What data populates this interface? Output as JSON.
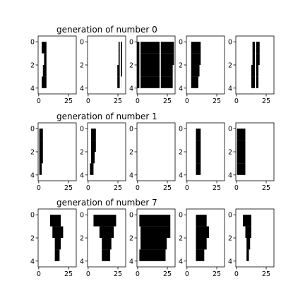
{
  "chart_data": {
    "type": "heatmap",
    "colormap": "binary",
    "rows": [
      {
        "title": "generation of number 0",
        "panels": [
          {
            "filled": [
              [
                3,
                7
              ],
              [
                5,
                7
              ],
              [
                4,
                7
              ],
              [
                3,
                7
              ]
            ],
            "white": []
          },
          {
            "filled": [
              [
                26,
                29
              ],
              [
                26,
                29
              ],
              [
                25,
                29
              ],
              [
                25,
                28
              ]
            ],
            "white": [
              [
                27,
                28
              ]
            ]
          },
          {
            "filled": [
              [
                0,
                31
              ],
              [
                0,
                31
              ],
              [
                0,
                30
              ],
              [
                0,
                30
              ]
            ],
            "white": [
              [
                2,
                3
              ],
              [
                19,
                20
              ]
            ]
          },
          {
            "filled": [
              [
                4,
                12
              ],
              [
                4,
                12
              ],
              [
                4,
                11
              ],
              [
                4,
                10
              ]
            ],
            "white": []
          },
          {
            "filled": [
              [
                14,
                20
              ],
              [
                14,
                20
              ],
              [
                13,
                19
              ],
              [
                13,
                19
              ]
            ],
            "white": [
              [
                16,
                17
              ]
            ]
          }
        ]
      },
      {
        "title": "generation of number 1",
        "panels": [
          {
            "filled": [
              [
                1,
                4
              ],
              [
                1,
                4
              ],
              [
                1,
                4
              ],
              [
                1,
                3
              ]
            ],
            "white": []
          },
          {
            "filled": [
              [
                3,
                7
              ],
              [
                3,
                7
              ],
              [
                3,
                6
              ],
              [
                2,
                5
              ]
            ],
            "white": []
          },
          {
            "filled": [],
            "white": []
          },
          {
            "filled": [
              [
                8,
                12
              ],
              [
                8,
                12
              ],
              [
                8,
                12
              ],
              [
                8,
                12
              ]
            ],
            "white": []
          },
          {
            "filled": [
              [
                1,
                8
              ],
              [
                1,
                8
              ],
              [
                1,
                8
              ],
              [
                1,
                8
              ]
            ],
            "white": []
          }
        ]
      },
      {
        "title": "generation of number 7",
        "panels": [
          {
            "filled": [
              [
                10,
                19
              ],
              [
                12,
                21
              ],
              [
                14,
                19
              ],
              [
                14,
                18
              ]
            ],
            "white": []
          },
          {
            "filled": [
              [
                5,
                24
              ],
              [
                10,
                22
              ],
              [
                12,
                20
              ],
              [
                12,
                19
              ]
            ],
            "white": []
          },
          {
            "filled": [
              [
                2,
                28
              ],
              [
                3,
                28
              ],
              [
                3,
                25
              ],
              [
                2,
                24
              ]
            ],
            "white": []
          },
          {
            "filled": [
              [
                8,
                17
              ],
              [
                8,
                19
              ],
              [
                8,
                17
              ],
              [
                8,
                15
              ]
            ],
            "white": []
          },
          {
            "filled": [
              [
                6,
                13
              ],
              [
                8,
                13
              ],
              [
                9,
                12
              ],
              [
                9,
                11
              ]
            ],
            "white": []
          }
        ]
      }
    ],
    "x_ticks": [
      0,
      25
    ],
    "y_ticks": [
      0,
      2,
      4
    ],
    "x_range": [
      -0.5,
      31.5
    ],
    "y_range": [
      -0.5,
      4.5
    ],
    "grid": false,
    "legend": "none"
  }
}
